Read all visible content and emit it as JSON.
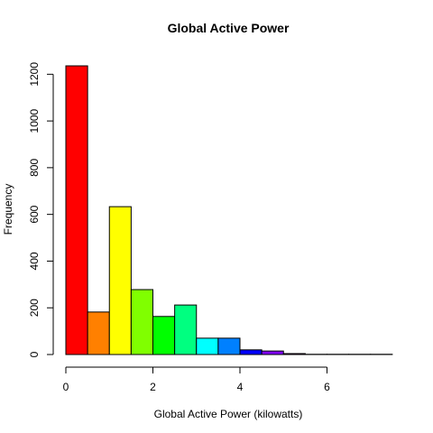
{
  "chart_data": {
    "type": "bar",
    "title": "Global Active Power",
    "xlabel": "Global Active Power (kilowatts)",
    "ylabel": "Frequency",
    "bin_edges": [
      0,
      0.5,
      1,
      1.5,
      2,
      2.5,
      3,
      3.5,
      4,
      4.5,
      5,
      5.5,
      6,
      6.5,
      7,
      7.5
    ],
    "values": [
      1236,
      182,
      633,
      278,
      163,
      212,
      70,
      70,
      20,
      15,
      4,
      1,
      1,
      1,
      1
    ],
    "colors": [
      "#FF0000",
      "#FF8000",
      "#FFFF00",
      "#80FF00",
      "#00FF00",
      "#00FF80",
      "#00FFFF",
      "#0080FF",
      "#0000FF",
      "#8000FF",
      "#FF00FF",
      "#FF0080",
      "#FF0080",
      "#FF0080",
      "#FF0080"
    ],
    "xticks": [
      0,
      2,
      4,
      6
    ],
    "yticks": [
      0,
      200,
      400,
      600,
      800,
      1000,
      1200
    ],
    "xlim": [
      0,
      7.5
    ],
    "ylim": [
      0,
      1236
    ],
    "grid": false
  }
}
